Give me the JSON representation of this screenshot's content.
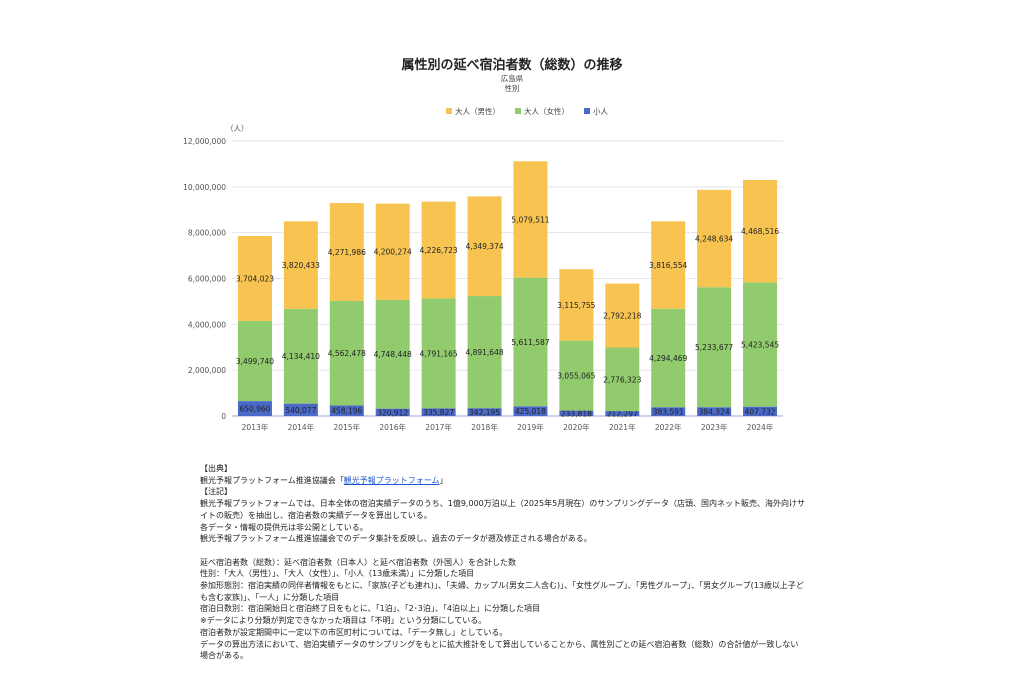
{
  "chart_data": {
    "type": "bar",
    "stacked": true,
    "title": "属性別の延べ宿泊者数（総数）の推移",
    "subtitles": [
      "広島県",
      "性別"
    ],
    "ylabel": "（人）",
    "ylim": [
      0,
      12000000
    ],
    "yticks": [
      "0",
      "2,000,000",
      "4,000,000",
      "6,000,000",
      "8,000,000",
      "10,000,000",
      "12,000,000"
    ],
    "categories": [
      "2013年",
      "2014年",
      "2015年",
      "2016年",
      "2017年",
      "2018年",
      "2019年",
      "2020年",
      "2021年",
      "2022年",
      "2023年",
      "2024年"
    ],
    "legend_position": "top",
    "series": [
      {
        "name": "小人",
        "color": "#4a69c9",
        "values": [
          650960,
          540077,
          458196,
          320912,
          335827,
          342195,
          425018,
          233818,
          212297,
          383591,
          384324,
          407732
        ],
        "labels": [
          "650,960",
          "540,077",
          "458,196",
          "320,912",
          "335,827",
          "342,195",
          "425,018",
          "233,818",
          "212,297",
          "383,591",
          "384,324",
          "407,732"
        ]
      },
      {
        "name": "大人（女性）",
        "color": "#91cb6e",
        "values": [
          3499740,
          4134410,
          4562478,
          4748448,
          4791165,
          4891648,
          5611587,
          3055065,
          2776323,
          4294469,
          5233677,
          5423545
        ],
        "labels": [
          "3,499,740",
          "4,134,410",
          "4,562,478",
          "4,748,448",
          "4,791,165",
          "4,891,648",
          "5,611,587",
          "3,055,065",
          "2,776,323",
          "4,294,469",
          "5,233,677",
          "5,423,545"
        ]
      },
      {
        "name": "大人（男性）",
        "color": "#f8c451",
        "values": [
          3704023,
          3820433,
          4271986,
          4200274,
          4226723,
          4349374,
          5079511,
          3115755,
          2792218,
          3816554,
          4248634,
          4468516
        ],
        "labels": [
          "3,704,023",
          "3,820,433",
          "4,271,986",
          "4,200,274",
          "4,226,723",
          "4,349,374",
          "5,079,511",
          "3,115,755",
          "2,792,218",
          "3,816,554",
          "4,248,634",
          "4,468,516"
        ]
      }
    ],
    "legend_order": [
      "大人（男性）",
      "大人（女性）",
      "小人"
    ]
  },
  "notes": {
    "source_heading": "【出典】",
    "source_prefix": "観光予報プラットフォーム推進協議会「",
    "source_link": "観光予報プラットフォーム",
    "source_suffix": "」",
    "notes_heading": "【注記】",
    "lines1": [
      "観光予報プラットフォームでは、日本全体の宿泊実績データのうち、1億9,000万泊以上（2025年5月現在）のサンプリングデータ（店頭、国内ネット販売、海外向けサ",
      "イトの販売）を抽出し、宿泊者数の実績データを算出している。",
      "各データ・情報の提供元は非公開としている。",
      "観光予報プラットフォーム推進協議会でのデータ集計を反映し、過去のデータが遡及修正される場合がある。"
    ],
    "lines2": [
      "延べ宿泊者数（総数）：延べ宿泊者数（日本人）と延べ宿泊者数（外国人）を合計した数",
      "性別：「大人（男性）」、「大人（女性）」、「小人（13歳未満）」に分類した項目",
      "参加形態別：宿泊実績の同伴者情報をもとに、「家族(子ども連れ)」、「夫婦、カップル(男女二人含む)」、「女性グループ」、「男性グループ」、「男女グループ(13歳以上子ど",
      "も含む家族)」、「一人」に分類した項目",
      "宿泊日数別：宿泊開始日と宿泊終了日をもとに、「1泊」、「2･3泊」、「4泊以上」に分類した項目",
      "※データにより分類が判定できなかった項目は「不明」という分類にしている。",
      "宿泊者数が設定期間中に一定以下の市区町村については、「データ無し」としている。",
      "データの算出方法において、宿泊実績データのサンプリングをもとに拡大推計をして算出していることから、属性別ごとの延べ宿泊者数（総数）の合計値が一致しない",
      "場合がある。"
    ]
  }
}
